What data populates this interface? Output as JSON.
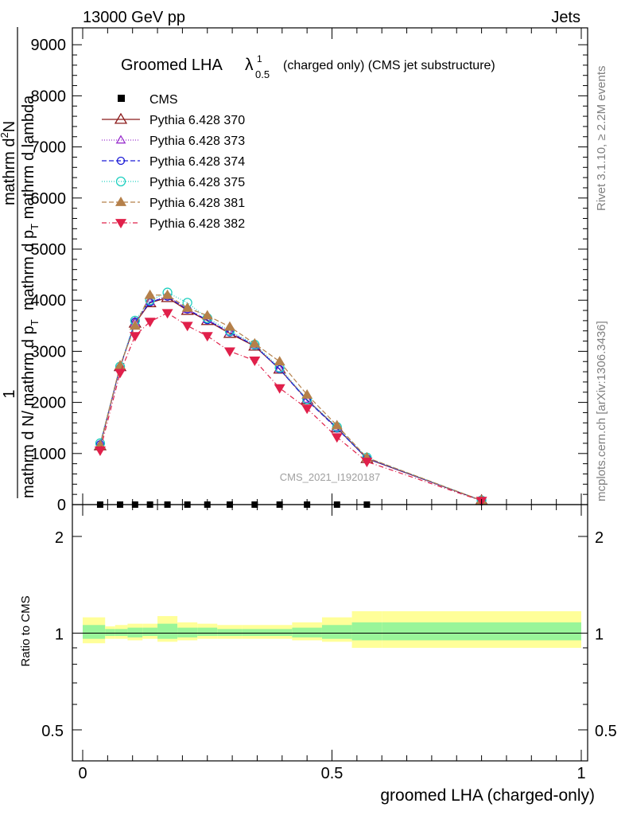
{
  "header": {
    "left": "13000 GeV pp",
    "right": "Jets"
  },
  "title": {
    "main": "Groomed LHA",
    "lambda": "λ",
    "sub": "0.5",
    "sup": "1",
    "rest": "(charged only) (CMS jet substructure)"
  },
  "ylabel_main": {
    "one": "1",
    "bottom": "mathrm d N/ mathrm d p",
    "bottom_sub": "T",
    "top": "mathrm d",
    "top_sup": "2",
    "top2": "N",
    "denom": "mathrm d p",
    "denom_sub": "T",
    "denom2": " mathrm d lambda"
  },
  "ylabel_ratio": "Ratio to CMS",
  "xlabel": "groomed LHA (charged-only)",
  "side_text": {
    "rivet": "Rivet 3.1.10, ≥ 2.2M events",
    "mcplots": "mcplots.cern.ch [arXiv:1306.3436]"
  },
  "watermark": "CMS_2021_I1920187",
  "legend": {
    "cms": "CMS",
    "entries": [
      "Pythia 6.428 370",
      "Pythia 6.428 373",
      "Pythia 6.428 374",
      "Pythia 6.428 375",
      "Pythia 6.428 381",
      "Pythia 6.428 382"
    ]
  },
  "chart_data": {
    "type": "line",
    "x": [
      0.035,
      0.075,
      0.105,
      0.135,
      0.17,
      0.21,
      0.25,
      0.295,
      0.345,
      0.395,
      0.45,
      0.51,
      0.57,
      0.8
    ],
    "xlim": [
      -0.03,
      1.0
    ],
    "ylim_main": [
      0,
      9200
    ],
    "ylim_ratio": [
      0.4,
      2.3
    ],
    "yticks_main": [
      0,
      1000,
      2000,
      3000,
      4000,
      5000,
      6000,
      7000,
      8000,
      9000
    ],
    "yticks_main_labels": [
      "0",
      "1000",
      "2000",
      "3000",
      "4000",
      "5000",
      "6000",
      "7000",
      "8000",
      "9000"
    ],
    "yticks_ratio": [
      0.5,
      1,
      2
    ],
    "yticks_ratio_labels": [
      "0.5",
      "1",
      "2"
    ],
    "xticks": [
      0,
      0.5,
      1
    ],
    "xticks_labels": [
      "0",
      "0.5",
      "1"
    ],
    "ratio_log_scale": true,
    "cms_values": [
      0,
      0,
      0,
      0,
      0,
      0,
      0,
      0,
      0,
      0,
      0,
      0,
      0
    ],
    "cms_x": [
      0.035,
      0.075,
      0.105,
      0.135,
      0.17,
      0.21,
      0.25,
      0.295,
      0.345,
      0.395,
      0.45,
      0.51,
      0.57
    ],
    "series": [
      {
        "name": "Pythia 6.428 370",
        "color": "#8b1a1a",
        "marker": "triangle-open",
        "dash": "",
        "values": [
          1150,
          2700,
          3550,
          3950,
          4050,
          3800,
          3600,
          3350,
          3100,
          2650,
          2050,
          1500,
          900,
          80
        ]
      },
      {
        "name": "Pythia 6.428 373",
        "color": "#9a32cd",
        "marker": "triangle-open-small",
        "dash": "1,2",
        "values": [
          1170,
          2680,
          3560,
          3970,
          4080,
          3820,
          3620,
          3380,
          3120,
          2660,
          2060,
          1510,
          910,
          80
        ]
      },
      {
        "name": "Pythia 6.428 374",
        "color": "#1c1cd6",
        "marker": "circle-open",
        "dash": "6,3",
        "values": [
          1180,
          2680,
          3580,
          3960,
          4070,
          3820,
          3610,
          3370,
          3110,
          2650,
          2040,
          1490,
          905,
          80
        ]
      },
      {
        "name": "Pythia 6.428 375",
        "color": "#20d0c0",
        "marker": "circle-open-big",
        "dash": "1,2",
        "values": [
          1200,
          2700,
          3600,
          4000,
          4150,
          3950,
          3650,
          3400,
          3130,
          2680,
          2060,
          1520,
          920,
          82
        ]
      },
      {
        "name": "Pythia 6.428 381",
        "color": "#b5804a",
        "marker": "triangle-filled",
        "dash": "6,3",
        "values": [
          1160,
          2720,
          3500,
          4100,
          4100,
          3850,
          3700,
          3480,
          3150,
          2800,
          2150,
          1550,
          920,
          82
        ]
      },
      {
        "name": "Pythia 6.428 382",
        "color": "#e0204a",
        "marker": "triangle-down-filled",
        "dash": "6,3,1,3",
        "values": [
          1060,
          2580,
          3300,
          3580,
          3750,
          3500,
          3300,
          3000,
          2820,
          2280,
          1880,
          1320,
          840,
          75
        ]
      }
    ],
    "ratio_bands": {
      "edges": [
        0.0,
        0.045,
        0.065,
        0.09,
        0.12,
        0.15,
        0.19,
        0.23,
        0.27,
        0.32,
        0.37,
        0.42,
        0.48,
        0.54,
        0.6,
        1.0
      ],
      "yellow_lo": [
        0.93,
        0.96,
        0.96,
        0.95,
        0.96,
        0.94,
        0.95,
        0.96,
        0.96,
        0.96,
        0.96,
        0.95,
        0.94,
        0.9,
        0.9
      ],
      "yellow_hi": [
        1.12,
        1.05,
        1.06,
        1.07,
        1.07,
        1.13,
        1.08,
        1.07,
        1.06,
        1.06,
        1.06,
        1.08,
        1.12,
        1.17,
        1.17
      ],
      "green_lo": [
        0.96,
        0.98,
        0.98,
        0.97,
        0.98,
        0.96,
        0.97,
        0.98,
        0.98,
        0.98,
        0.98,
        0.97,
        0.96,
        0.95,
        0.95
      ],
      "green_hi": [
        1.06,
        1.03,
        1.03,
        1.04,
        1.04,
        1.07,
        1.04,
        1.04,
        1.03,
        1.03,
        1.03,
        1.04,
        1.06,
        1.08,
        1.08
      ]
    },
    "grid": false
  }
}
